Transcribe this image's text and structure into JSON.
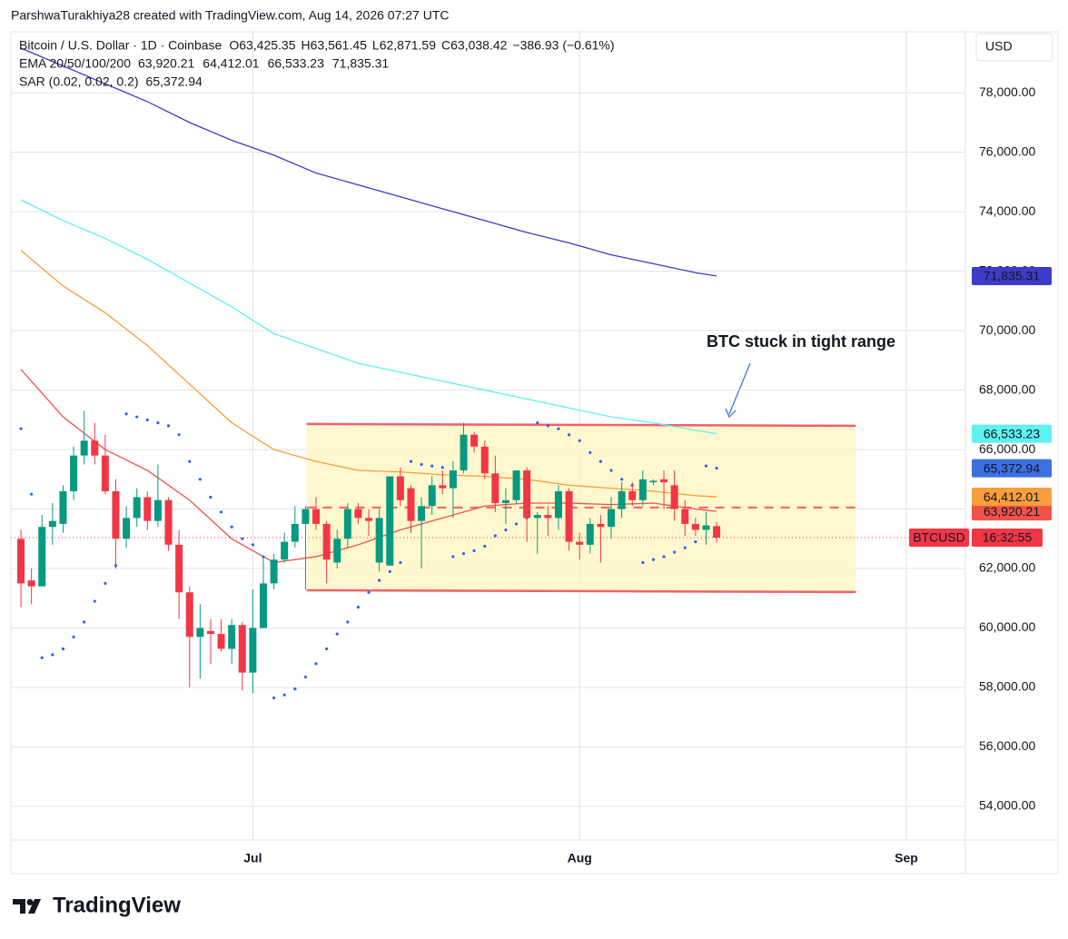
{
  "chart_data": {
    "type": "candlestick",
    "attribution": "ParshwaTurakhiya28 created with TradingView.com, Aug 14, 2026 07:27 UTC",
    "title": "Bitcoin / U.S. Dollar · 1D · Coinbase",
    "ohlc_legend": [
      {
        "key": "O",
        "label": "63,425.35"
      },
      {
        "key": "H",
        "label": "63,561.45"
      },
      {
        "key": "L",
        "label": "62,871.59"
      },
      {
        "key": "C",
        "label": "63,038.42"
      }
    ],
    "change_label": "−386.93 (−0.61%)",
    "currency": "USD",
    "up_color": "#089981",
    "down_color": "#f23645",
    "candles": {
      "open": [
        63000,
        61600,
        61400,
        63400,
        63500,
        64600,
        65800,
        66300,
        65800,
        64600,
        63000,
        63700,
        64400,
        63600,
        64300,
        62800,
        61200,
        59700,
        59900,
        59800,
        59300,
        60100,
        58500,
        60000,
        61500,
        62300,
        62900,
        63500,
        64000,
        63500,
        62200,
        63000,
        64000,
        63700,
        62200,
        62100,
        65100,
        64700,
        63600,
        64100,
        64800,
        64700,
        65300,
        66500,
        66100,
        65200,
        64200,
        64300,
        65300,
        63700,
        63800,
        63700,
        64600,
        62900,
        62800,
        63500,
        63400,
        64000,
        64600,
        64300,
        64900,
        65000,
        64800,
        64000,
        63500,
        63300,
        63425.35
      ],
      "high": [
        63300,
        62000,
        63800,
        64200,
        64800,
        66100,
        67300,
        66900,
        66500,
        65000,
        64100,
        64700,
        64600,
        65500,
        64400,
        63300,
        61400,
        60800,
        60300,
        60300,
        60300,
        60200,
        61300,
        62400,
        62500,
        63200,
        64100,
        64100,
        64400,
        63600,
        63300,
        64200,
        64200,
        64000,
        64000,
        65100,
        65400,
        64800,
        64400,
        65100,
        65300,
        65600,
        66900,
        66600,
        66300,
        65800,
        64700,
        65300,
        65400,
        63900,
        64100,
        64800,
        64700,
        63200,
        63700,
        63800,
        64400,
        64900,
        64900,
        65300,
        65000,
        65300,
        65300,
        64300,
        63700,
        63900,
        63561.45
      ],
      "low": [
        60700,
        60800,
        61400,
        62800,
        63200,
        64300,
        65500,
        65500,
        64500,
        62000,
        62700,
        63400,
        63300,
        63400,
        62600,
        60300,
        58000,
        58300,
        58800,
        59200,
        58800,
        57900,
        57800,
        60000,
        61300,
        62200,
        62700,
        61300,
        63300,
        61500,
        62000,
        62700,
        63500,
        63100,
        61900,
        62100,
        64100,
        63200,
        62000,
        63800,
        64500,
        63700,
        65200,
        65900,
        65000,
        63900,
        63500,
        64200,
        62900,
        62500,
        63100,
        63300,
        62600,
        62300,
        62500,
        62200,
        63000,
        63700,
        64100,
        64100,
        64800,
        64000,
        63600,
        63100,
        63100,
        62800,
        62871.59
      ],
      "close": [
        61500,
        61400,
        63400,
        63600,
        64600,
        65800,
        66300,
        65800,
        64600,
        63000,
        63700,
        64400,
        63600,
        64300,
        62800,
        61200,
        59700,
        60000,
        59800,
        59300,
        60100,
        58500,
        60000,
        61500,
        62300,
        62900,
        63500,
        64000,
        63500,
        62300,
        63000,
        64000,
        63700,
        63600,
        63700,
        65100,
        64300,
        63600,
        64100,
        64800,
        64700,
        65300,
        66500,
        66100,
        65200,
        64200,
        64300,
        65300,
        63700,
        63800,
        63700,
        64600,
        62900,
        62800,
        63500,
        63400,
        64000,
        64600,
        64300,
        65000,
        64950,
        64900,
        64000,
        63500,
        63300,
        63450,
        63038.42
      ]
    },
    "xlim": [
      -0.95,
      89.6
    ],
    "xticks": [
      {
        "value": 22,
        "label": "Jul"
      },
      {
        "value": 53,
        "label": "Aug"
      },
      {
        "value": 84,
        "label": "Sep"
      }
    ],
    "ylim": [
      52870,
      80050
    ],
    "yticks": [
      {
        "value": 54000,
        "label": "54,000.00"
      },
      {
        "value": 56000,
        "label": "56,000.00"
      },
      {
        "value": 58000,
        "label": "58,000.00"
      },
      {
        "value": 60000,
        "label": "60,000.00"
      },
      {
        "value": 62000,
        "label": "62,000.00"
      },
      {
        "value": 64000,
        "label": "64,000.00"
      },
      {
        "value": 66000,
        "label": "66,000.00"
      },
      {
        "value": 68000,
        "label": "68,000.00"
      },
      {
        "value": 70000,
        "label": "70,000.00"
      },
      {
        "value": 72000,
        "label": "72,000.00"
      },
      {
        "value": 74000,
        "label": "74,000.00"
      },
      {
        "value": 76000,
        "label": "76,000.00"
      },
      {
        "value": 78000,
        "label": "78,000.00"
      }
    ],
    "grid": true,
    "indicators": [
      {
        "label": "EMA 20/50/100/200",
        "lines": [
          {
            "color": "#f0524a",
            "tag_text": "#ffffff",
            "value_label": "63,920.21",
            "x": [
              0,
              4,
              8,
              12,
              16,
              20,
              24,
              28,
              32,
              36,
              40,
              44,
              48,
              52,
              56,
              60,
              64,
              66
            ],
            "values": [
              68700,
              67100,
              66000,
              65300,
              64300,
              63000,
              62200,
              62400,
              62800,
              63300,
              63700,
              64100,
              64200,
              64200,
              64150,
              64200,
              64000,
              63920.21
            ]
          },
          {
            "color": "#f89e3a",
            "tag_text": "#ffffff",
            "value_label": "64,412.01",
            "x": [
              0,
              4,
              8,
              12,
              16,
              20,
              24,
              28,
              32,
              36,
              40,
              44,
              48,
              52,
              56,
              60,
              64,
              66
            ],
            "values": [
              72700,
              71500,
              70600,
              69500,
              68200,
              66900,
              66000,
              65600,
              65300,
              65250,
              65150,
              65100,
              65000,
              64800,
              64700,
              64600,
              64450,
              64412.01
            ]
          },
          {
            "color": "#5ff0f0",
            "tag_text": "#131722",
            "value_label": "66,533.23",
            "x": [
              0,
              4,
              8,
              12,
              16,
              20,
              24,
              28,
              32,
              36,
              40,
              44,
              48,
              52,
              56,
              60,
              64,
              66
            ],
            "values": [
              74400,
              73700,
              73100,
              72400,
              71600,
              70800,
              69900,
              69400,
              68900,
              68600,
              68300,
              68000,
              67700,
              67400,
              67100,
              66900,
              66650,
              66533.23
            ]
          },
          {
            "color": "#3c3cc8",
            "tag_text": "#ffffff",
            "value_label": "71,835.31",
            "x": [
              0,
              4,
              8,
              12,
              16,
              20,
              24,
              28,
              32,
              36,
              40,
              44,
              48,
              52,
              56,
              60,
              64,
              66
            ],
            "values": [
              79500,
              78900,
              78300,
              77700,
              77000,
              76400,
              75900,
              75300,
              74900,
              74500,
              74100,
              73700,
              73300,
              72950,
              72550,
              72250,
              71950,
              71835.31
            ]
          }
        ]
      },
      {
        "label": "SAR (0.02, 0.02, 0.2)",
        "dots": {
          "color": "#2962ff",
          "tag_color": "#3d6fe0",
          "value_label": "65,372.94",
          "values": [
            66700,
            64500,
            59000,
            59100,
            59300,
            59700,
            60200,
            60900,
            61500,
            62100,
            67200,
            67100,
            67000,
            66900,
            66800,
            66500,
            65600,
            65000,
            64400,
            63900,
            63400,
            63000,
            62800,
            62400,
            57650,
            57750,
            57950,
            58350,
            58800,
            59300,
            59800,
            60200,
            60700,
            61200,
            61600,
            61900,
            62200,
            65600,
            65500,
            65450,
            65400,
            62400,
            62500,
            62600,
            62750,
            63100,
            63300,
            63500,
            63700,
            66900,
            66800,
            66700,
            66500,
            66300,
            65900,
            65600,
            65300,
            65000,
            64800,
            62200,
            62300,
            62400,
            62550,
            62700,
            62900,
            65450,
            65372.94
          ]
        }
      }
    ],
    "range_box": {
      "x": [
        27.1,
        79.2
      ],
      "top": [
        66860,
        66800
      ],
      "bottom": [
        61270,
        61210
      ],
      "mid": 64050,
      "color": "#f0616a",
      "fill": "#fff6c2"
    },
    "annotation": {
      "text": "BTC stuck in tight range",
      "color": "#2f6fd6"
    },
    "price_line": {
      "value": 63038.42,
      "symbol": "BTCUSD",
      "countdown": "16:32:55",
      "color": "#f23645"
    },
    "brand": "TradingView"
  }
}
